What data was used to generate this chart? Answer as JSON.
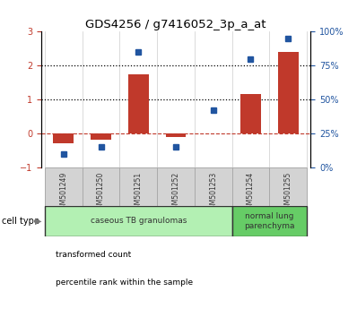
{
  "title": "GDS4256 / g7416052_3p_a_at",
  "samples": [
    "GSM501249",
    "GSM501250",
    "GSM501251",
    "GSM501252",
    "GSM501253",
    "GSM501254",
    "GSM501255"
  ],
  "red_values": [
    -0.28,
    -0.18,
    1.75,
    -0.1,
    0.0,
    1.15,
    2.4
  ],
  "blue_values": [
    10,
    15,
    85,
    15,
    42,
    80,
    95
  ],
  "left_ylim": [
    -1,
    3
  ],
  "right_ylim": [
    0,
    100
  ],
  "left_yticks": [
    -1,
    0,
    1,
    2,
    3
  ],
  "right_yticks": [
    0,
    25,
    50,
    75,
    100
  ],
  "right_yticklabels": [
    "0%",
    "25%",
    "50%",
    "75%",
    "100%"
  ],
  "hlines": [
    1.0,
    2.0
  ],
  "red_color": "#c0392b",
  "blue_color": "#2155a0",
  "bar_width": 0.55,
  "cell_type_label": "cell type",
  "groups": [
    {
      "label": "caseous TB granulomas",
      "indices": [
        0,
        1,
        2,
        3,
        4
      ],
      "color": "#b3f0b3"
    },
    {
      "label": "normal lung\nparenchyma",
      "indices": [
        5,
        6
      ],
      "color": "#66cc66"
    }
  ],
  "legend_entries": [
    {
      "label": "transformed count",
      "color": "#c0392b"
    },
    {
      "label": "percentile rank within the sample",
      "color": "#2155a0"
    }
  ],
  "plot_bg": "#ffffff",
  "sample_box_color": "#d3d3d3",
  "sample_box_edge": "#aaaaaa"
}
